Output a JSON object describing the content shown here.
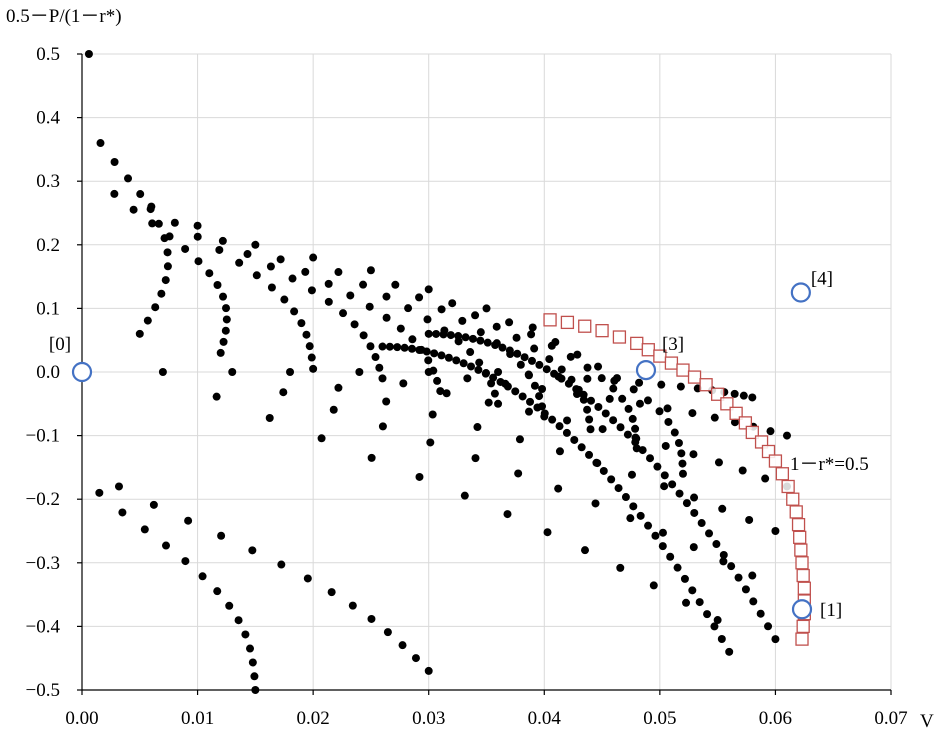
{
  "chart_data": {
    "type": "scatter",
    "title": "",
    "ylabel": "0.5－P/(1－r*)",
    "xlabel": "V",
    "xlim": [
      0,
      0.07
    ],
    "ylim": [
      -0.5,
      0.5
    ],
    "x_ticks": [
      "0.00",
      "0.01",
      "0.02",
      "0.03",
      "0.04",
      "0.05",
      "0.06",
      "0.07"
    ],
    "y_ticks": [
      "0.5",
      "0.4",
      "0.3",
      "0.2",
      "0.1",
      "0.0",
      "−0.1",
      "−0.2",
      "−0.3",
      "−0.4",
      "−0.5"
    ],
    "grid": true,
    "colors": {
      "dots": "#000000",
      "frontier": "#c0504d",
      "labeled_points": "#4472c4",
      "grid": "#d9d9d9"
    },
    "series": [
      {
        "marker": "filled-circle",
        "families": [
          {
            "xa": 0.0016,
            "ya": 0.36,
            "xb": 0.005,
            "yb": 0.06
          },
          {
            "xa": 0.0028,
            "ya": 0.28,
            "xb": 0.012,
            "yb": 0.03
          },
          {
            "xa": 0.006,
            "ya": 0.26,
            "xb": 0.02,
            "yb": 0.005
          },
          {
            "xa": 0.01,
            "ya": 0.23,
            "xb": 0.026,
            "yb": -0.01
          },
          {
            "xa": 0.015,
            "ya": 0.2,
            "xb": 0.031,
            "yb": -0.03
          },
          {
            "xa": 0.02,
            "ya": 0.18,
            "xb": 0.036,
            "yb": -0.05
          },
          {
            "xa": 0.025,
            "ya": 0.16,
            "xb": 0.04,
            "yb": -0.07
          },
          {
            "xa": 0.03,
            "ya": 0.13,
            "xb": 0.044,
            "yb": -0.09
          },
          {
            "xa": 0.035,
            "ya": 0.1,
            "xb": 0.048,
            "yb": -0.12
          },
          {
            "xa": 0.039,
            "ya": 0.07,
            "xb": 0.052,
            "yb": -0.16
          },
          {
            "xa": 0.0015,
            "ya": -0.19,
            "xb": 0.015,
            "yb": -0.5
          },
          {
            "xa": 0.0032,
            "ya": -0.18,
            "xb": 0.03,
            "yb": -0.47
          },
          {
            "xa": 0.007,
            "ya": 0.0,
            "xb": 0.055,
            "yb": -0.39
          },
          {
            "xa": 0.013,
            "ya": 0.0,
            "xb": 0.058,
            "yb": -0.32
          },
          {
            "xa": 0.018,
            "ya": 0.0,
            "xb": 0.06,
            "yb": -0.25
          },
          {
            "xa": 0.024,
            "ya": 0.0,
            "xb": 0.061,
            "yb": -0.18
          },
          {
            "xa": 0.03,
            "ya": 0.0,
            "xb": 0.061,
            "yb": -0.1
          },
          {
            "xa": 0.036,
            "ya": 0.0,
            "xb": 0.058,
            "yb": -0.04
          }
        ]
      },
      {
        "marker": "open-square",
        "points": [
          [
            0.0405,
            0.082
          ],
          [
            0.042,
            0.078
          ],
          [
            0.0435,
            0.072
          ],
          [
            0.045,
            0.065
          ],
          [
            0.0465,
            0.055
          ],
          [
            0.048,
            0.045
          ],
          [
            0.049,
            0.035
          ],
          [
            0.05,
            0.025
          ],
          [
            0.051,
            0.014
          ],
          [
            0.052,
            0.003
          ],
          [
            0.053,
            -0.008
          ],
          [
            0.054,
            -0.02
          ],
          [
            0.055,
            -0.035
          ],
          [
            0.0558,
            -0.05
          ],
          [
            0.0566,
            -0.065
          ],
          [
            0.0574,
            -0.08
          ],
          [
            0.058,
            -0.095
          ],
          [
            0.0588,
            -0.11
          ],
          [
            0.0594,
            -0.125
          ],
          [
            0.06,
            -0.14
          ],
          [
            0.0606,
            -0.16
          ],
          [
            0.0611,
            -0.18
          ],
          [
            0.0615,
            -0.2
          ],
          [
            0.0618,
            -0.22
          ],
          [
            0.062,
            -0.24
          ],
          [
            0.0621,
            -0.26
          ],
          [
            0.0622,
            -0.28
          ],
          [
            0.0623,
            -0.3
          ],
          [
            0.0624,
            -0.32
          ],
          [
            0.0625,
            -0.34
          ],
          [
            0.0625,
            -0.36
          ],
          [
            0.0625,
            -0.38
          ],
          [
            0.0624,
            -0.4
          ],
          [
            0.0623,
            -0.42
          ]
        ]
      },
      {
        "marker": "open-circle",
        "points": [
          {
            "x": 0.0,
            "y": 0.0,
            "label": "[0]"
          },
          {
            "x": 0.0623,
            "y": -0.373,
            "label": "[1]"
          },
          {
            "x": 0.0488,
            "y": 0.003,
            "label": "[3]"
          },
          {
            "x": 0.0622,
            "y": 0.125,
            "label": "[4]"
          }
        ]
      }
    ],
    "annotations": [
      {
        "text": "1－r*=0.5",
        "x": 0.061,
        "y": -0.145
      }
    ]
  }
}
